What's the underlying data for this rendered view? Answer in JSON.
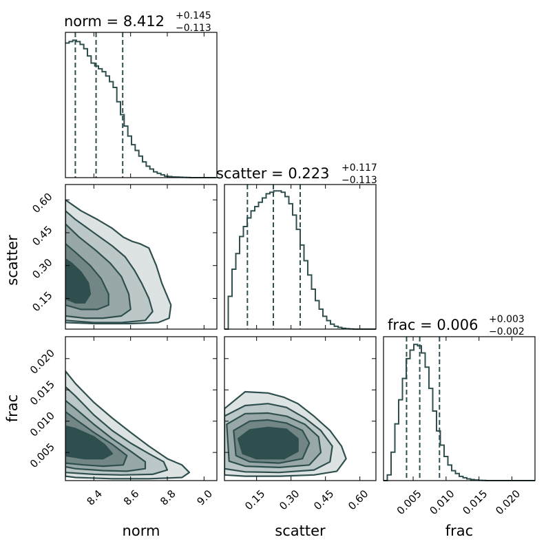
{
  "colors": {
    "main": "#2f4f4f",
    "fills": [
      "#dde3e3",
      "#bcc7c7",
      "#98a7a7",
      "#728686",
      "#2f4f4f"
    ],
    "axis": "#000000"
  },
  "chart_data": {
    "type": "corner",
    "params": [
      "norm",
      "scatter",
      "frac"
    ],
    "ranges": {
      "norm": [
        8.245,
        9.07
      ],
      "scatter": [
        0.01,
        0.67
      ],
      "frac": [
        0.0005,
        0.0235
      ]
    },
    "ticks": {
      "norm": [
        8.4,
        8.6,
        8.8,
        9.0
      ],
      "scatter": [
        0.15,
        0.3,
        0.45,
        0.6
      ],
      "frac": [
        0.005,
        0.01,
        0.015,
        0.02
      ]
    },
    "tick_labels": {
      "norm": [
        "8.4",
        "8.6",
        "8.8",
        "9.0"
      ],
      "scatter": [
        "0.15",
        "0.30",
        "0.45",
        "0.60"
      ],
      "frac": [
        "0.005",
        "0.010",
        "0.015",
        "0.020"
      ]
    },
    "axis_labels": {
      "norm": "norm",
      "scatter": "scatter",
      "frac": "frac"
    },
    "titles": [
      {
        "param": "norm",
        "prefix": "norm = ",
        "value": "8.412",
        "plus": "+0.145",
        "minus": "−0.113"
      },
      {
        "param": "scatter",
        "prefix": "scatter = ",
        "value": "0.223",
        "plus": "+0.117",
        "minus": "−0.113"
      },
      {
        "param": "frac",
        "prefix": "frac = ",
        "value": "0.006",
        "plus": "+0.003",
        "minus": "−0.002"
      }
    ],
    "quantiles": {
      "norm": [
        8.299,
        8.412,
        8.557
      ],
      "scatter": [
        0.11,
        0.223,
        0.34
      ],
      "frac": [
        0.004,
        0.006,
        0.009
      ]
    },
    "histograms": {
      "norm": {
        "start": 8.245,
        "width": 0.02,
        "counts": [
          0.94,
          0.95,
          0.96,
          0.95,
          0.93,
          0.9,
          0.85,
          0.8,
          0.78,
          0.76,
          0.74,
          0.71,
          0.67,
          0.63,
          0.53,
          0.44,
          0.36,
          0.29,
          0.23,
          0.19,
          0.15,
          0.11,
          0.08,
          0.06,
          0.04,
          0.03,
          0.02,
          0.01,
          0.008,
          0.005,
          0.004,
          0.003,
          0.002,
          0.001,
          0.0,
          0.0,
          0.0,
          0.0,
          0.0,
          0.0,
          0.0
        ]
      },
      "scatter": {
        "start": 0.01,
        "width": 0.0165,
        "counts": [
          0.0,
          0.23,
          0.42,
          0.53,
          0.65,
          0.72,
          0.78,
          0.83,
          0.86,
          0.89,
          0.92,
          0.95,
          0.96,
          0.97,
          0.97,
          0.96,
          0.93,
          0.88,
          0.8,
          0.7,
          0.59,
          0.48,
          0.38,
          0.28,
          0.2,
          0.14,
          0.09,
          0.06,
          0.035,
          0.02,
          0.012,
          0.006,
          0.003,
          0.001,
          0.0,
          0.0,
          0.0,
          0.0,
          0.0,
          0.0
        ]
      },
      "frac": {
        "start": 0.0005,
        "width": 0.000575,
        "counts": [
          0.0,
          0.04,
          0.2,
          0.4,
          0.57,
          0.72,
          0.86,
          0.92,
          0.96,
          0.95,
          0.9,
          0.8,
          0.65,
          0.49,
          0.35,
          0.25,
          0.17,
          0.11,
          0.07,
          0.05,
          0.03,
          0.02,
          0.012,
          0.007,
          0.004,
          0.002,
          0.001,
          0.0,
          0.0,
          0.0,
          0.0,
          0.0,
          0.0,
          0.0,
          0.0,
          0.0,
          0.0,
          0.0,
          0.0,
          0.0
        ]
      }
    },
    "contours": {
      "scatter_vs_norm": {
        "x": "norm",
        "y": "scatter",
        "levels": [
          [
            [
              8.245,
              0.6
            ],
            [
              8.33,
              0.55
            ],
            [
              8.42,
              0.51
            ],
            [
              8.5,
              0.47
            ],
            [
              8.56,
              0.43
            ],
            [
              8.61,
              0.41
            ],
            [
              8.65,
              0.4
            ],
            [
              8.7,
              0.38
            ],
            [
              8.74,
              0.3
            ],
            [
              8.77,
              0.22
            ],
            [
              8.82,
              0.12
            ],
            [
              8.81,
              0.06
            ],
            [
              8.75,
              0.04
            ],
            [
              8.6,
              0.035
            ],
            [
              8.4,
              0.035
            ],
            [
              8.245,
              0.04
            ]
          ],
          [
            [
              8.245,
              0.55
            ],
            [
              8.3,
              0.51
            ],
            [
              8.4,
              0.45
            ],
            [
              8.5,
              0.39
            ],
            [
              8.57,
              0.34
            ],
            [
              8.62,
              0.28
            ],
            [
              8.66,
              0.22
            ],
            [
              8.7,
              0.15
            ],
            [
              8.72,
              0.09
            ],
            [
              8.68,
              0.05
            ],
            [
              8.55,
              0.04
            ],
            [
              8.4,
              0.04
            ],
            [
              8.245,
              0.05
            ]
          ],
          [
            [
              8.245,
              0.49
            ],
            [
              8.32,
              0.43
            ],
            [
              8.41,
              0.37
            ],
            [
              8.49,
              0.31
            ],
            [
              8.55,
              0.25
            ],
            [
              8.59,
              0.17
            ],
            [
              8.6,
              0.1
            ],
            [
              8.55,
              0.07
            ],
            [
              8.45,
              0.06
            ],
            [
              8.35,
              0.06
            ],
            [
              8.245,
              0.07
            ]
          ],
          [
            [
              8.245,
              0.4
            ],
            [
              8.3,
              0.36
            ],
            [
              8.38,
              0.3
            ],
            [
              8.44,
              0.24
            ],
            [
              8.48,
              0.17
            ],
            [
              8.48,
              0.12
            ],
            [
              8.42,
              0.1
            ],
            [
              8.33,
              0.1
            ],
            [
              8.245,
              0.12
            ]
          ],
          [
            [
              8.245,
              0.33
            ],
            [
              8.28,
              0.31
            ],
            [
              8.33,
              0.27
            ],
            [
              8.37,
              0.22
            ],
            [
              8.38,
              0.17
            ],
            [
              8.35,
              0.13
            ],
            [
              8.3,
              0.13
            ],
            [
              8.245,
              0.15
            ]
          ]
        ]
      },
      "frac_vs_norm": {
        "x": "norm",
        "y": "frac",
        "levels": [
          [
            [
              8.245,
              0.018
            ],
            [
              8.3,
              0.016
            ],
            [
              8.4,
              0.013
            ],
            [
              8.5,
              0.0105
            ],
            [
              8.6,
              0.0082
            ],
            [
              8.7,
              0.006
            ],
            [
              8.8,
              0.004
            ],
            [
              8.88,
              0.003
            ],
            [
              8.92,
              0.0018
            ],
            [
              8.88,
              0.001
            ],
            [
              8.7,
              0.0008
            ],
            [
              8.5,
              0.0008
            ],
            [
              8.3,
              0.001
            ],
            [
              8.245,
              0.0012
            ]
          ],
          [
            [
              8.245,
              0.0155
            ],
            [
              8.3,
              0.014
            ],
            [
              8.4,
              0.011
            ],
            [
              8.5,
              0.0085
            ],
            [
              8.6,
              0.0065
            ],
            [
              8.7,
              0.0048
            ],
            [
              8.78,
              0.0035
            ],
            [
              8.8,
              0.0022
            ],
            [
              8.72,
              0.0015
            ],
            [
              8.55,
              0.0014
            ],
            [
              8.4,
              0.0015
            ],
            [
              8.245,
              0.0018
            ]
          ],
          [
            [
              8.245,
              0.0133
            ],
            [
              8.3,
              0.012
            ],
            [
              8.4,
              0.0095
            ],
            [
              8.5,
              0.0072
            ],
            [
              8.6,
              0.0052
            ],
            [
              8.68,
              0.0035
            ],
            [
              8.68,
              0.0024
            ],
            [
              8.58,
              0.002
            ],
            [
              8.45,
              0.0021
            ],
            [
              8.3,
              0.0024
            ],
            [
              8.245,
              0.0027
            ]
          ],
          [
            [
              8.245,
              0.0115
            ],
            [
              8.3,
              0.0103
            ],
            [
              8.4,
              0.0082
            ],
            [
              8.5,
              0.0063
            ],
            [
              8.58,
              0.0045
            ],
            [
              8.56,
              0.003
            ],
            [
              8.45,
              0.0028
            ],
            [
              8.35,
              0.003
            ],
            [
              8.245,
              0.0033
            ]
          ],
          [
            [
              8.245,
              0.0092
            ],
            [
              8.3,
              0.0088
            ],
            [
              8.4,
              0.0075
            ],
            [
              8.46,
              0.0062
            ],
            [
              8.5,
              0.0048
            ],
            [
              8.45,
              0.004
            ],
            [
              8.35,
              0.004
            ],
            [
              8.245,
              0.0045
            ]
          ]
        ]
      },
      "frac_vs_scatter": {
        "x": "scatter",
        "y": "frac",
        "levels": [
          [
            [
              0.01,
              0.012
            ],
            [
              0.1,
              0.0147
            ],
            [
              0.2,
              0.0145
            ],
            [
              0.27,
              0.0138
            ],
            [
              0.33,
              0.0128
            ],
            [
              0.4,
              0.0108
            ],
            [
              0.47,
              0.0085
            ],
            [
              0.52,
              0.006
            ],
            [
              0.54,
              0.004
            ],
            [
              0.5,
              0.002
            ],
            [
              0.4,
              0.0014
            ],
            [
              0.25,
              0.0012
            ],
            [
              0.1,
              0.0012
            ],
            [
              0.01,
              0.0014
            ]
          ],
          [
            [
              0.01,
              0.0108
            ],
            [
              0.1,
              0.0125
            ],
            [
              0.2,
              0.0128
            ],
            [
              0.28,
              0.0122
            ],
            [
              0.36,
              0.0105
            ],
            [
              0.43,
              0.0085
            ],
            [
              0.48,
              0.006
            ],
            [
              0.47,
              0.0035
            ],
            [
              0.4,
              0.0022
            ],
            [
              0.25,
              0.0018
            ],
            [
              0.1,
              0.0019
            ],
            [
              0.01,
              0.0024
            ]
          ],
          [
            [
              0.02,
              0.0095
            ],
            [
              0.1,
              0.0112
            ],
            [
              0.2,
              0.0113
            ],
            [
              0.28,
              0.0108
            ],
            [
              0.36,
              0.0095
            ],
            [
              0.42,
              0.0075
            ],
            [
              0.43,
              0.005
            ],
            [
              0.38,
              0.003
            ],
            [
              0.25,
              0.0026
            ],
            [
              0.1,
              0.0028
            ],
            [
              0.03,
              0.0036
            ]
          ],
          [
            [
              0.05,
              0.0085
            ],
            [
              0.12,
              0.01
            ],
            [
              0.2,
              0.0102
            ],
            [
              0.28,
              0.0097
            ],
            [
              0.35,
              0.0085
            ],
            [
              0.38,
              0.0065
            ],
            [
              0.35,
              0.004
            ],
            [
              0.25,
              0.0033
            ],
            [
              0.12,
              0.0035
            ],
            [
              0.06,
              0.0045
            ]
          ],
          [
            [
              0.07,
              0.0072
            ],
            [
              0.12,
              0.0086
            ],
            [
              0.2,
              0.009
            ],
            [
              0.28,
              0.0087
            ],
            [
              0.33,
              0.0072
            ],
            [
              0.33,
              0.0052
            ],
            [
              0.27,
              0.004
            ],
            [
              0.15,
              0.004
            ],
            [
              0.09,
              0.0048
            ]
          ]
        ]
      }
    }
  }
}
